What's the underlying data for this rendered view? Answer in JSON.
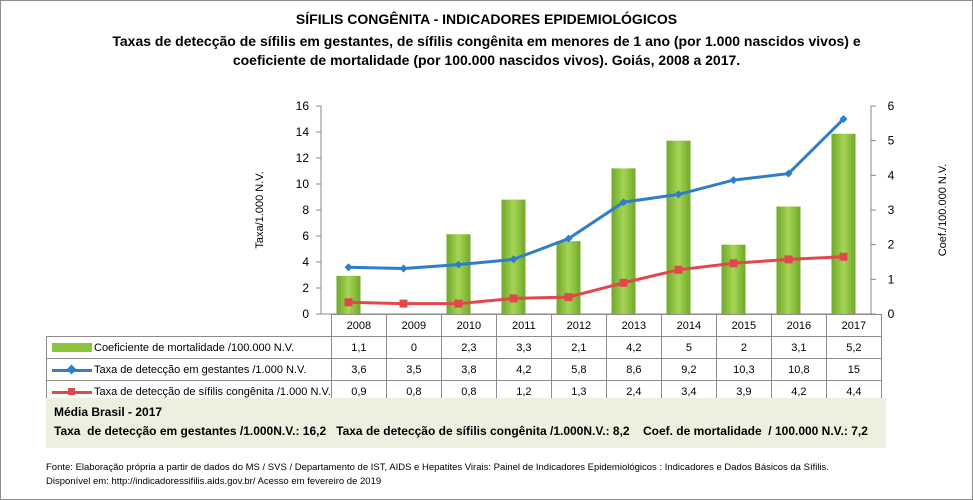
{
  "title": "SÍFILIS CONGÊNITA - INDICADORES EPIDEMIOLÓGICOS",
  "subtitle": "Taxas de detecção de sífilis em gestantes, de sífilis congênita em menores de 1 ano (por 1.000 nascidos vivos) e coeficiente de mortalidade (por 100.000 nascidos vivos). Goiás, 2008 a 2017.",
  "chart_data": {
    "type": "bar+line",
    "categories": [
      "2008",
      "2009",
      "2010",
      "2011",
      "2012",
      "2013",
      "2014",
      "2015",
      "2016",
      "2017"
    ],
    "ylabel_left": "Taxa/1.000 N.V.",
    "ylabel_right": "Coef./100.000 N.V.",
    "ylim_left": [
      0,
      16
    ],
    "ylim_right": [
      0,
      6
    ],
    "yticks_left": [
      "0",
      "2",
      "4",
      "6",
      "8",
      "10",
      "12",
      "14",
      "16"
    ],
    "yticks_right": [
      "0",
      "1",
      "2",
      "3",
      "4",
      "5",
      "6"
    ],
    "series": [
      {
        "name": "Coeficiente de mortalidade /100.000 N.V.",
        "type": "bar",
        "axis": "right",
        "color": "#8cc43c",
        "values": [
          1.1,
          0,
          2.3,
          3.3,
          2.1,
          4.2,
          5,
          2,
          3.1,
          5.2
        ],
        "labels": [
          "1,1",
          "0",
          "2,3",
          "3,3",
          "2,1",
          "4,2",
          "5",
          "2",
          "3,1",
          "5,2"
        ]
      },
      {
        "name": "Taxa de detecção em gestantes /1.000 N.V.",
        "type": "line",
        "axis": "left",
        "color": "#2f7fc8",
        "marker": "diamond",
        "values": [
          3.6,
          3.5,
          3.8,
          4.2,
          5.8,
          8.6,
          9.2,
          10.3,
          10.8,
          15
        ],
        "labels": [
          "3,6",
          "3,5",
          "3,8",
          "4,2",
          "5,8",
          "8,6",
          "9,2",
          "10,3",
          "10,8",
          "15"
        ]
      },
      {
        "name": "Taxa de detecção de sífilis congênita /1.000 N.V.",
        "type": "line",
        "axis": "left",
        "color": "#e0484c",
        "marker": "square",
        "values": [
          0.9,
          0.8,
          0.8,
          1.2,
          1.3,
          2.4,
          3.4,
          3.9,
          4.2,
          4.4
        ],
        "labels": [
          "0,9",
          "0,8",
          "0,8",
          "1,2",
          "1,3",
          "2,4",
          "3,4",
          "3,9",
          "4,2",
          "4,4"
        ]
      }
    ],
    "legend": "data-table"
  },
  "media": {
    "title": "Média Brasil - 2017",
    "line": "Taxa  de detecção em gestantes /1.000N.V.: 16,2   Taxa de detecção de sífilis congênita /1.000N.V.: 8,2    Coef. de mortalidade  / 100.000 N.V.: 7,2"
  },
  "footer": {
    "line1": "Fonte: Elaboração própria a partir de dados do MS / SVS / Departamento de IST, AIDS e Hepatites Virais: Painel de Indicadores Epidemiológicos : Indicadores e Dados Básicos da Sífilis.",
    "line2": "Disponível em: http://indicadoressifilis.aids.gov.br/    Acesso em fevereiro de 2019"
  }
}
